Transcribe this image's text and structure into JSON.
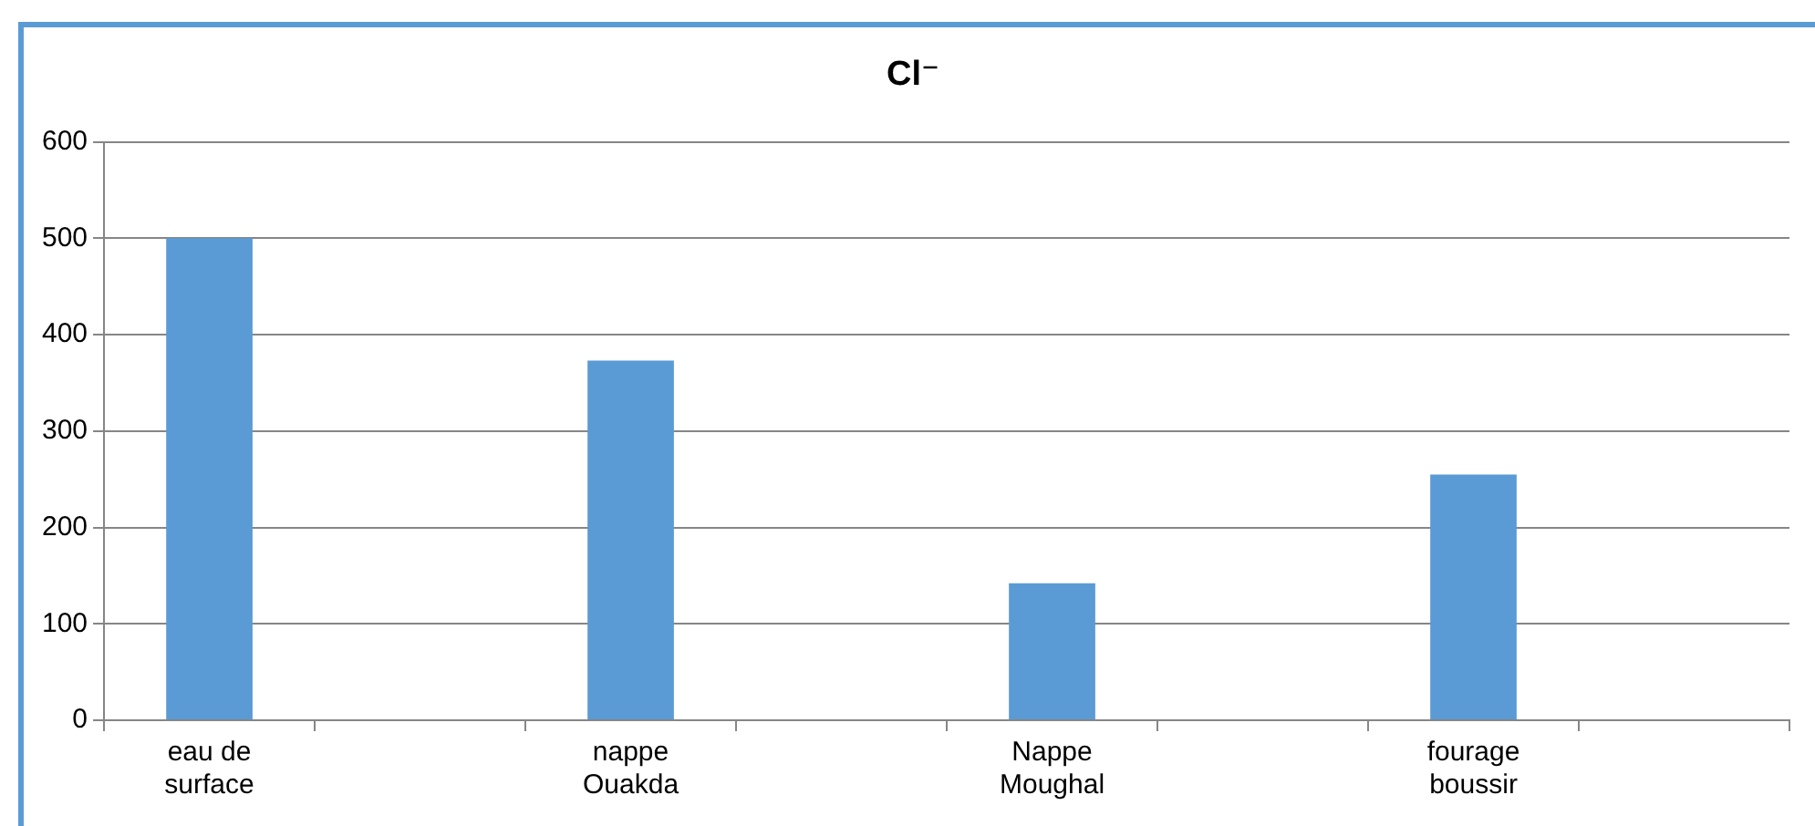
{
  "chart_data": {
    "type": "bar",
    "title": "Cl⁻",
    "categories": [
      "eau de surface",
      null,
      "nappe Ouakda",
      null,
      "Nappe Moughal",
      null,
      "fourage boussir",
      null
    ],
    "values": [
      500,
      null,
      373,
      null,
      142,
      null,
      255,
      null
    ],
    "color": "#5b9bd5",
    "ylim": [
      0,
      600
    ],
    "yticks": [
      0,
      100,
      200,
      300,
      400,
      500,
      600
    ],
    "grid": "y",
    "legend": false
  }
}
